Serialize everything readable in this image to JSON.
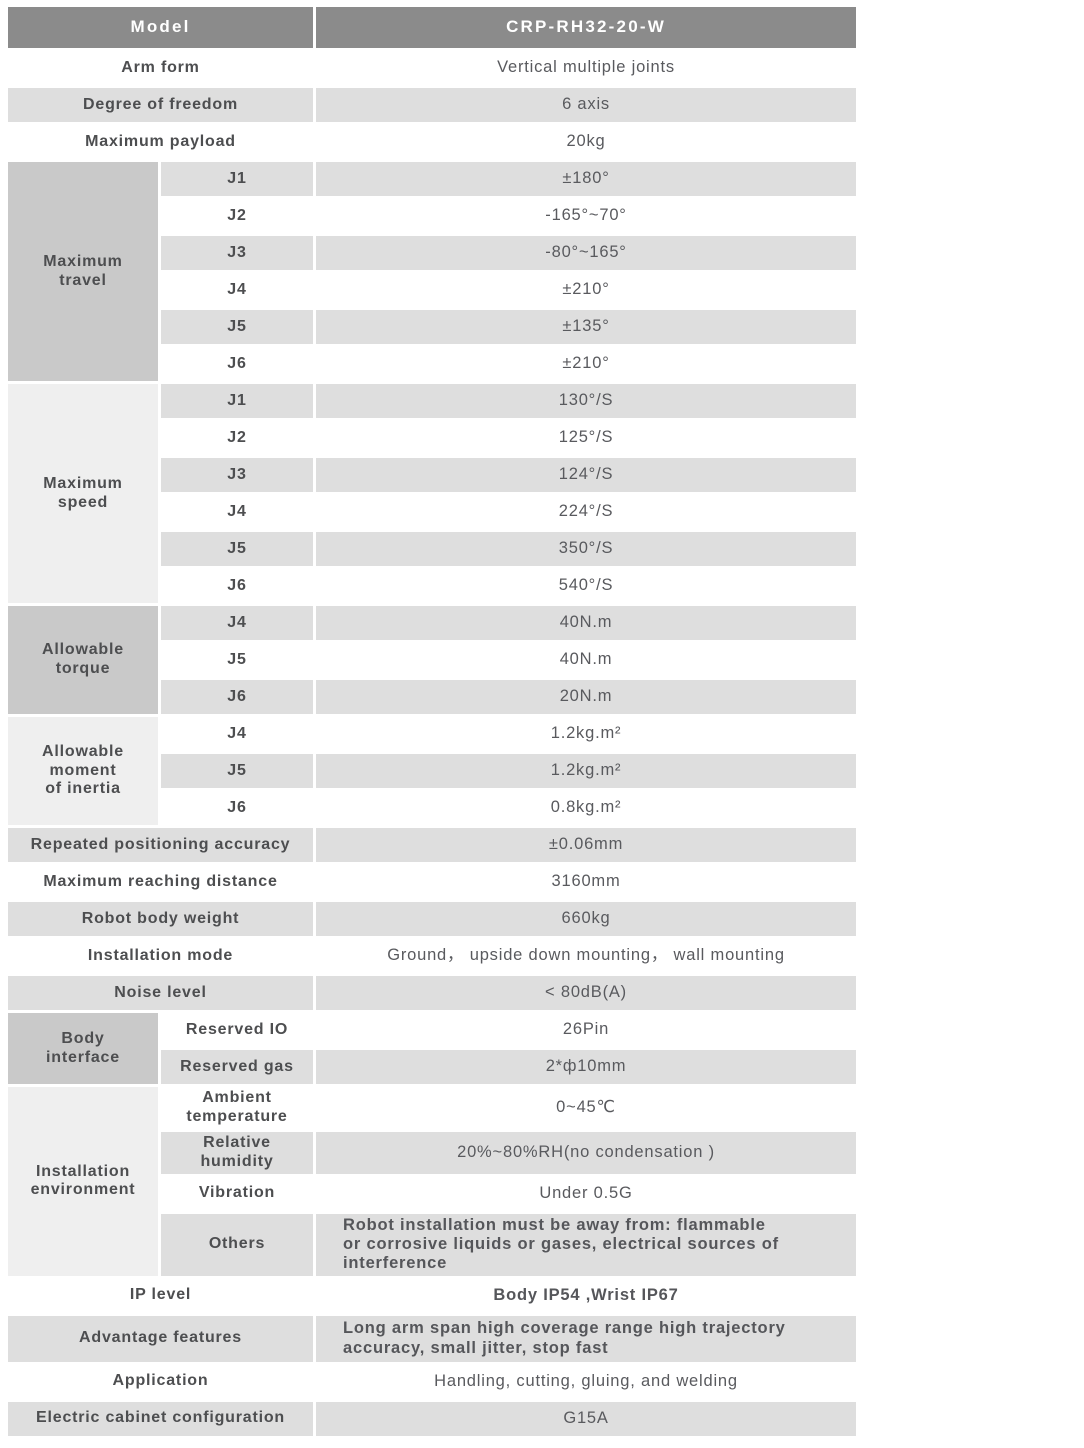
{
  "model_row": {
    "label": "Model",
    "value": "CRP-RH32-20-W"
  },
  "top_rows": [
    {
      "label": "Arm form",
      "value": "Vertical multiple joints"
    },
    {
      "label": "Degree of freedom",
      "value": "6 axis"
    },
    {
      "label": "Maximum payload",
      "value": "20kg"
    }
  ],
  "maximum_travel": {
    "label": "Maximum\ntravel",
    "rows": [
      {
        "joint": "J1",
        "value": "±180°"
      },
      {
        "joint": "J2",
        "value": "-165°~70°"
      },
      {
        "joint": "J3",
        "value": "-80°~165°"
      },
      {
        "joint": "J4",
        "value": "±210°"
      },
      {
        "joint": "J5",
        "value": "±135°"
      },
      {
        "joint": "J6",
        "value": "±210°"
      }
    ]
  },
  "maximum_speed": {
    "label": "Maximum\nspeed",
    "rows": [
      {
        "joint": "J1",
        "value": "130°/S"
      },
      {
        "joint": "J2",
        "value": "125°/S"
      },
      {
        "joint": "J3",
        "value": "124°/S"
      },
      {
        "joint": "J4",
        "value": "224°/S"
      },
      {
        "joint": "J5",
        "value": "350°/S"
      },
      {
        "joint": "J6",
        "value": "540°/S"
      }
    ]
  },
  "allowable_torque": {
    "label": "Allowable\ntorque",
    "rows": [
      {
        "joint": "J4",
        "value": "40N.m"
      },
      {
        "joint": "J5",
        "value": "40N.m"
      },
      {
        "joint": "J6",
        "value": "20N.m"
      }
    ]
  },
  "allowable_inertia": {
    "label": "Allowable\nmoment\nof inertia",
    "rows": [
      {
        "joint": "J4",
        "value": "1.2kg.m²"
      },
      {
        "joint": "J5",
        "value": "1.2kg.m²"
      },
      {
        "joint": "J6",
        "value": "0.8kg.m²"
      }
    ]
  },
  "mid_rows": [
    {
      "label": "Repeated positioning accuracy",
      "value": "±0.06mm"
    },
    {
      "label": "Maximum reaching distance",
      "value": "3160mm"
    },
    {
      "label": "Robot body weight",
      "value": "660kg"
    },
    {
      "label": "Installation mode",
      "value": "Ground， upside down mounting， wall mounting"
    },
    {
      "label": "Noise level",
      "value": "< 80dB(A)"
    }
  ],
  "body_interface": {
    "label": "Body\ninterface",
    "rows": [
      {
        "name": "Reserved IO",
        "value": "26Pin"
      },
      {
        "name": "Reserved gas",
        "value": "2*ф10mm"
      }
    ]
  },
  "installation_environment": {
    "label": "Installation\nenvironment",
    "rows": [
      {
        "name": "Ambient\ntemperature",
        "value": "0~45℃"
      },
      {
        "name": "Relative\nhumidity",
        "value": "20%~80%RH(no condensation )"
      },
      {
        "name": "Vibration",
        "value": "Under 0.5G"
      },
      {
        "name": "Others",
        "value": "Robot installation must be away from: flammable\nor corrosive liquids or gases, electrical sources of\ninterference"
      }
    ]
  },
  "bottom_rows": [
    {
      "label": "IP level",
      "value": "Body IP54 ,Wrist IP67"
    },
    {
      "label": "Advantage features",
      "value": "Long arm span high coverage range  high trajectory\naccuracy, small jitter, stop fast"
    },
    {
      "label": "Application",
      "value": "Handling, cutting, gluing, and welding"
    },
    {
      "label": "Electric cabinet configuration",
      "value": "G15A"
    }
  ],
  "colors": {
    "header_bg": "#8b8b8b",
    "row_gray": "#dedede",
    "group_dark": "#c9c9c9",
    "group_light": "#efefef",
    "text": "#4d4e50"
  }
}
